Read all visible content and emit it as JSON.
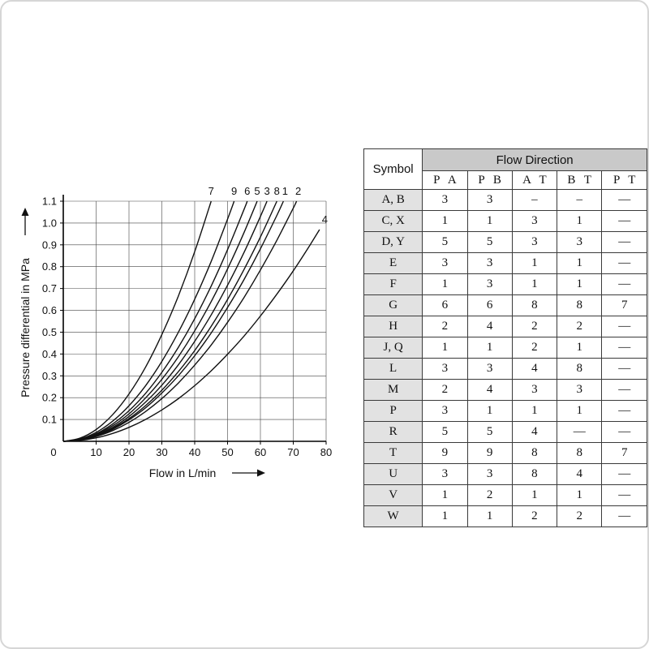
{
  "chart_data": {
    "type": "line",
    "title": "",
    "xlabel": "Flow in L/min",
    "ylabel": "Pressure differential in MPa",
    "xlim": [
      0,
      80
    ],
    "ylim": [
      0,
      1.1
    ],
    "x_ticks": [
      0,
      10,
      20,
      30,
      40,
      50,
      60,
      70,
      80
    ],
    "y_ticks": [
      0.1,
      0.2,
      0.3,
      0.4,
      0.5,
      0.6,
      0.7,
      0.8,
      0.9,
      1.0,
      1.1
    ],
    "origin_label": "0",
    "grid": true,
    "series": [
      {
        "name": "7",
        "label_pos": [
          45,
          1.13
        ],
        "points": [
          [
            0,
            0
          ],
          [
            5,
            0.014
          ],
          [
            10,
            0.054
          ],
          [
            15,
            0.122
          ],
          [
            20,
            0.217
          ],
          [
            25,
            0.339
          ],
          [
            30,
            0.489
          ],
          [
            35,
            0.665
          ],
          [
            40,
            0.869
          ],
          [
            45,
            1.1
          ]
        ]
      },
      {
        "name": "9",
        "label_pos": [
          52,
          1.13
        ],
        "points": [
          [
            0,
            0
          ],
          [
            5,
            0.01
          ],
          [
            10,
            0.041
          ],
          [
            15,
            0.092
          ],
          [
            20,
            0.163
          ],
          [
            25,
            0.254
          ],
          [
            30,
            0.366
          ],
          [
            35,
            0.499
          ],
          [
            40,
            0.651
          ],
          [
            45,
            0.824
          ],
          [
            50,
            1.018
          ],
          [
            52,
            1.1
          ]
        ]
      },
      {
        "name": "6",
        "label_pos": [
          56,
          1.13
        ],
        "points": [
          [
            0,
            0
          ],
          [
            5,
            0.009
          ],
          [
            10,
            0.035
          ],
          [
            15,
            0.079
          ],
          [
            20,
            0.14
          ],
          [
            25,
            0.219
          ],
          [
            30,
            0.316
          ],
          [
            35,
            0.43
          ],
          [
            40,
            0.562
          ],
          [
            45,
            0.711
          ],
          [
            50,
            0.878
          ],
          [
            55,
            1.062
          ],
          [
            56,
            1.1
          ]
        ]
      },
      {
        "name": "5",
        "label_pos": [
          59,
          1.13
        ],
        "points": [
          [
            0,
            0
          ],
          [
            5,
            0.008
          ],
          [
            10,
            0.032
          ],
          [
            15,
            0.071
          ],
          [
            20,
            0.126
          ],
          [
            25,
            0.198
          ],
          [
            30,
            0.284
          ],
          [
            35,
            0.387
          ],
          [
            40,
            0.506
          ],
          [
            45,
            0.64
          ],
          [
            50,
            0.79
          ],
          [
            55,
            0.956
          ],
          [
            59,
            1.1
          ]
        ]
      },
      {
        "name": "3",
        "label_pos": [
          62,
          1.13
        ],
        "points": [
          [
            0,
            0
          ],
          [
            5,
            0.007
          ],
          [
            10,
            0.029
          ],
          [
            15,
            0.064
          ],
          [
            20,
            0.114
          ],
          [
            25,
            0.179
          ],
          [
            30,
            0.257
          ],
          [
            35,
            0.35
          ],
          [
            40,
            0.458
          ],
          [
            45,
            0.579
          ],
          [
            50,
            0.715
          ],
          [
            55,
            0.865
          ],
          [
            60,
            1.03
          ],
          [
            62,
            1.1
          ]
        ]
      },
      {
        "name": "8",
        "label_pos": [
          65,
          1.13
        ],
        "points": [
          [
            0,
            0
          ],
          [
            5,
            0.007
          ],
          [
            10,
            0.026
          ],
          [
            15,
            0.059
          ],
          [
            20,
            0.104
          ],
          [
            25,
            0.163
          ],
          [
            30,
            0.234
          ],
          [
            35,
            0.319
          ],
          [
            40,
            0.416
          ],
          [
            45,
            0.527
          ],
          [
            50,
            0.65
          ],
          [
            55,
            0.787
          ],
          [
            60,
            0.936
          ],
          [
            65,
            1.1
          ]
        ]
      },
      {
        "name": "1",
        "label_pos": [
          67.5,
          1.13
        ],
        "points": [
          [
            0,
            0
          ],
          [
            5,
            0.006
          ],
          [
            10,
            0.025
          ],
          [
            15,
            0.055
          ],
          [
            20,
            0.098
          ],
          [
            25,
            0.153
          ],
          [
            30,
            0.221
          ],
          [
            35,
            0.3
          ],
          [
            40,
            0.392
          ],
          [
            45,
            0.496
          ],
          [
            50,
            0.613
          ],
          [
            55,
            0.741
          ],
          [
            60,
            0.882
          ],
          [
            65,
            1.035
          ],
          [
            67,
            1.1
          ]
        ]
      },
      {
        "name": "2",
        "label_pos": [
          71.5,
          1.13
        ],
        "points": [
          [
            0,
            0
          ],
          [
            5,
            0.005
          ],
          [
            10,
            0.022
          ],
          [
            15,
            0.049
          ],
          [
            20,
            0.087
          ],
          [
            25,
            0.136
          ],
          [
            30,
            0.196
          ],
          [
            35,
            0.267
          ],
          [
            40,
            0.349
          ],
          [
            45,
            0.441
          ],
          [
            50,
            0.545
          ],
          [
            55,
            0.659
          ],
          [
            60,
            0.785
          ],
          [
            65,
            0.921
          ],
          [
            70,
            1.068
          ],
          [
            71,
            1.1
          ]
        ]
      },
      {
        "name": "4",
        "label_pos": [
          79.6,
          1.0
        ],
        "points": [
          [
            0,
            0
          ],
          [
            5,
            0.004
          ],
          [
            10,
            0.016
          ],
          [
            15,
            0.036
          ],
          [
            20,
            0.064
          ],
          [
            25,
            0.1
          ],
          [
            30,
            0.144
          ],
          [
            35,
            0.195
          ],
          [
            40,
            0.255
          ],
          [
            45,
            0.323
          ],
          [
            50,
            0.399
          ],
          [
            55,
            0.482
          ],
          [
            60,
            0.574
          ],
          [
            65,
            0.674
          ],
          [
            70,
            0.781
          ],
          [
            75,
            0.897
          ],
          [
            78,
            0.97
          ]
        ]
      }
    ]
  },
  "table": {
    "symbol_header": "Symbol",
    "group_header": "Flow Direction",
    "columns": [
      "P A",
      "P B",
      "A T",
      "B T",
      "P T"
    ],
    "rows": [
      {
        "symbol": "A、B",
        "values": [
          "3",
          "3",
          "–",
          "–",
          "—"
        ]
      },
      {
        "symbol": "C、X",
        "values": [
          "1",
          "1",
          "3",
          "1",
          "—"
        ]
      },
      {
        "symbol": "D、Y",
        "values": [
          "5",
          "5",
          "3",
          "3",
          "—"
        ]
      },
      {
        "symbol": "E",
        "values": [
          "3",
          "3",
          "1",
          "1",
          "—"
        ]
      },
      {
        "symbol": "F",
        "values": [
          "1",
          "3",
          "1",
          "1",
          "—"
        ]
      },
      {
        "symbol": "G",
        "values": [
          "6",
          "6",
          "8",
          "8",
          "7"
        ]
      },
      {
        "symbol": "H",
        "values": [
          "2",
          "4",
          "2",
          "2",
          "—"
        ]
      },
      {
        "symbol": "J、Q",
        "values": [
          "1",
          "1",
          "2",
          "1",
          "—"
        ]
      },
      {
        "symbol": "L",
        "values": [
          "3",
          "3",
          "4",
          "8",
          "—"
        ]
      },
      {
        "symbol": "M",
        "values": [
          "2",
          "4",
          "3",
          "3",
          "—"
        ]
      },
      {
        "symbol": "P",
        "values": [
          "3",
          "1",
          "1",
          "1",
          "—"
        ]
      },
      {
        "symbol": "R",
        "values": [
          "5",
          "5",
          "4",
          "—",
          "—"
        ]
      },
      {
        "symbol": "T",
        "values": [
          "9",
          "9",
          "8",
          "8",
          "7"
        ]
      },
      {
        "symbol": "U",
        "values": [
          "3",
          "3",
          "8",
          "4",
          "—"
        ]
      },
      {
        "symbol": "V",
        "values": [
          "1",
          "2",
          "1",
          "1",
          "—"
        ]
      },
      {
        "symbol": "W",
        "values": [
          "1",
          "1",
          "2",
          "2",
          "—"
        ]
      }
    ]
  }
}
